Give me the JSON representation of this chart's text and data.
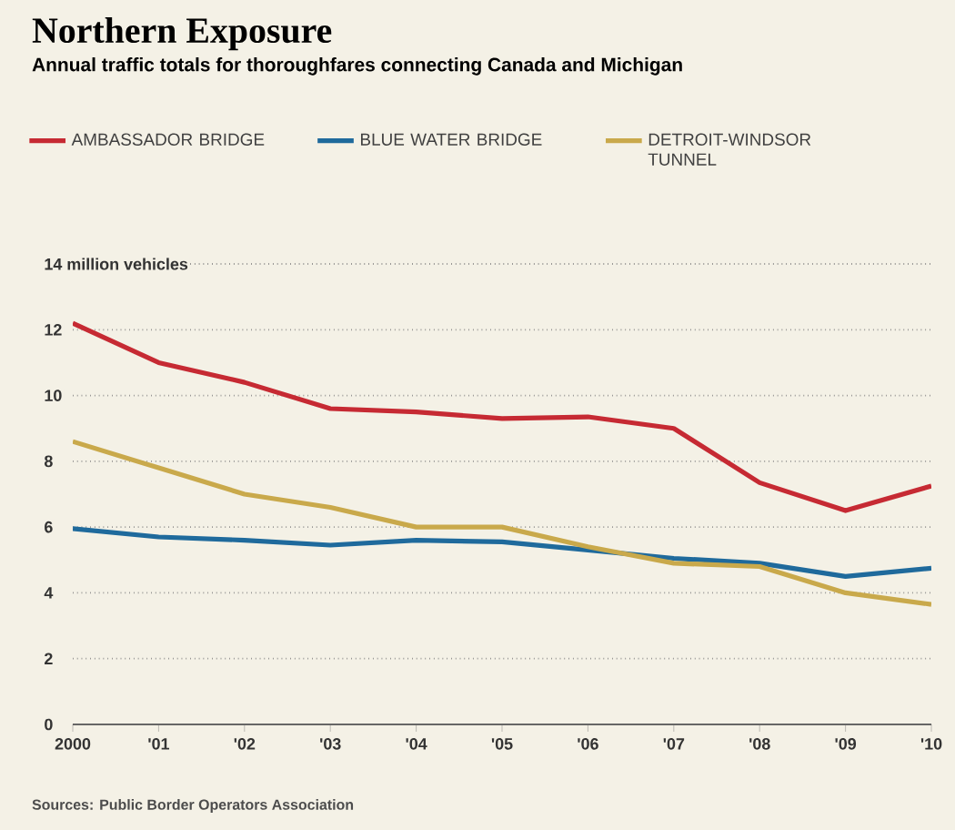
{
  "chart_data": {
    "type": "line",
    "title": "Northern Exposure",
    "subtitle": "Annual traffic totals for thoroughfares connecting Canada and Michigan",
    "x": [
      2000,
      2001,
      2002,
      2003,
      2004,
      2005,
      2006,
      2007,
      2008,
      2009,
      2010
    ],
    "series": [
      {
        "name": "AMBASSADOR BRIDGE",
        "color": "#c62a33",
        "values": [
          12.2,
          11.0,
          10.4,
          9.6,
          9.5,
          9.3,
          9.35,
          9.0,
          7.35,
          6.5,
          7.25
        ]
      },
      {
        "name": "BLUE WATER BRIDGE",
        "color": "#1f6a9c",
        "values": [
          5.95,
          5.7,
          5.6,
          5.45,
          5.6,
          5.55,
          5.3,
          5.05,
          4.9,
          4.5,
          4.75
        ]
      },
      {
        "name": "DETROIT-WINDSOR TUNNEL",
        "color": "#c9a94b",
        "values": [
          8.6,
          7.8,
          7.0,
          6.6,
          6.0,
          6.0,
          5.4,
          4.9,
          4.8,
          4.0,
          3.65
        ]
      }
    ],
    "xlim": [
      2000,
      2010
    ],
    "xticks": [
      2000,
      {
        "value": 2001,
        "label": "'01"
      },
      {
        "value": 2002,
        "label": "'02"
      },
      {
        "value": 2003,
        "label": "'03"
      },
      {
        "value": 2004,
        "label": "'04"
      },
      {
        "value": 2005,
        "label": "'05"
      },
      {
        "value": 2006,
        "label": "'06"
      },
      {
        "value": 2007,
        "label": "'07"
      },
      {
        "value": 2008,
        "label": "'08"
      },
      {
        "value": 2009,
        "label": "'09"
      },
      {
        "value": 2010,
        "label": "'10"
      }
    ],
    "ylim": [
      0,
      14
    ],
    "yticks": [
      0,
      2,
      4,
      6,
      8,
      10,
      12,
      {
        "value": 14,
        "label": "14 million vehicles"
      }
    ],
    "grid": "y",
    "legend": "top",
    "marker": "none",
    "line_style": "solid",
    "annotations": [
      "Sources: Public Border Operators Association"
    ]
  }
}
